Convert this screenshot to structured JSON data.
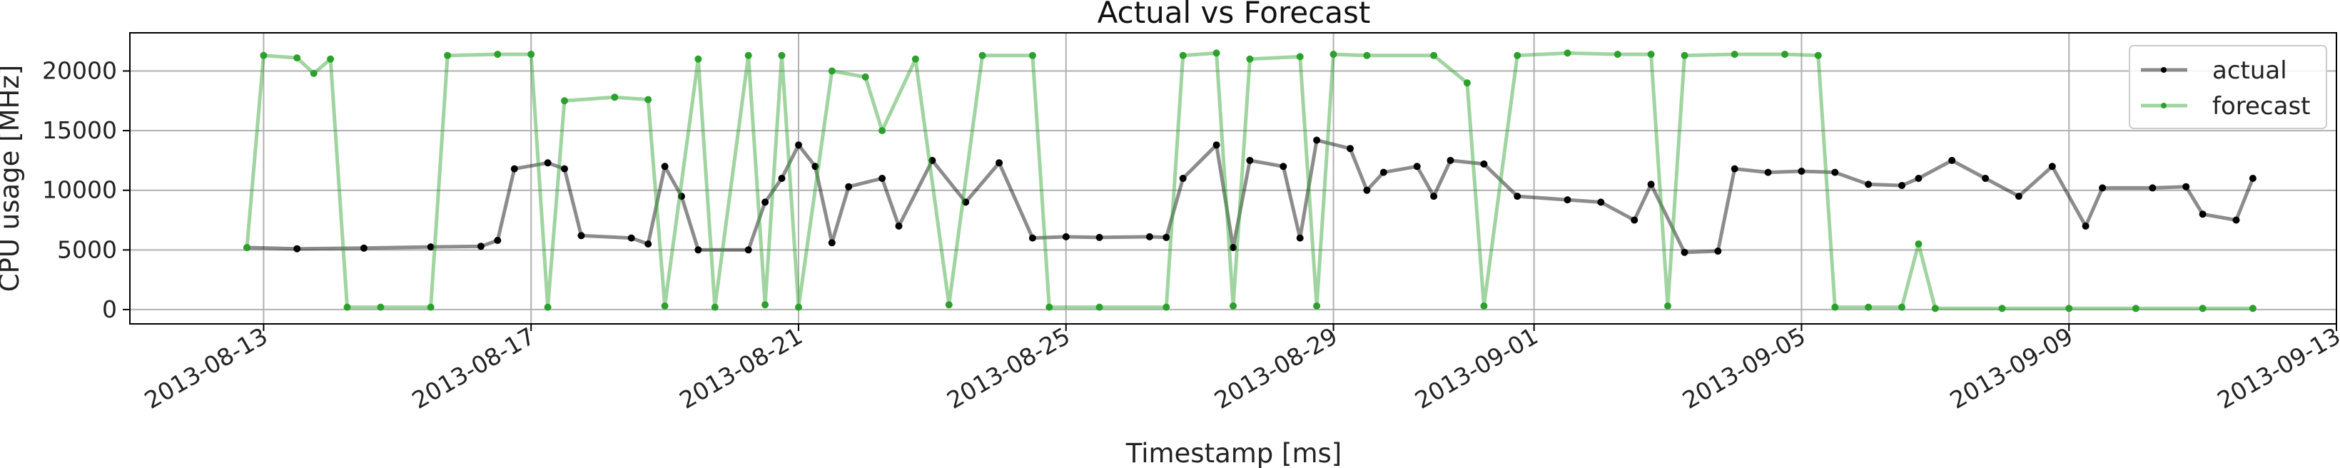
{
  "chart_data": {
    "type": "line",
    "title": "Actual vs Forecast",
    "xlabel": "Timestamp [ms]",
    "ylabel": "CPU usage [MHz]",
    "x_range": [
      "2013-08-11",
      "2013-09-13"
    ],
    "ylim": [
      -1200,
      23200
    ],
    "x_ticks": [
      "2013-08-13",
      "2013-08-17",
      "2013-08-21",
      "2013-08-25",
      "2013-08-29",
      "2013-09-01",
      "2013-09-05",
      "2013-09-09",
      "2013-09-13"
    ],
    "y_ticks": [
      0,
      5000,
      10000,
      15000,
      20000
    ],
    "grid": true,
    "legend_position": "top-right",
    "series": [
      {
        "name": "actual",
        "color": "#000000",
        "points": [
          [
            "2013-08-12T18:00",
            5200
          ],
          [
            "2013-08-13T12:00",
            5100
          ],
          [
            "2013-08-14T12:00",
            5150
          ],
          [
            "2013-08-15T12:00",
            5250
          ],
          [
            "2013-08-16T06:00",
            5300
          ],
          [
            "2013-08-16T12:00",
            5800
          ],
          [
            "2013-08-16T18:00",
            11800
          ],
          [
            "2013-08-17T06:00",
            12300
          ],
          [
            "2013-08-17T12:00",
            11800
          ],
          [
            "2013-08-17T18:00",
            6200
          ],
          [
            "2013-08-18T12:00",
            6000
          ],
          [
            "2013-08-18T18:00",
            5500
          ],
          [
            "2013-08-19T00:00",
            12000
          ],
          [
            "2013-08-19T06:00",
            9500
          ],
          [
            "2013-08-19T12:00",
            5000
          ],
          [
            "2013-08-20T06:00",
            5000
          ],
          [
            "2013-08-20T12:00",
            9000
          ],
          [
            "2013-08-20T18:00",
            11000
          ],
          [
            "2013-08-21T00:00",
            13800
          ],
          [
            "2013-08-21T06:00",
            12000
          ],
          [
            "2013-08-21T12:00",
            5600
          ],
          [
            "2013-08-21T18:00",
            10300
          ],
          [
            "2013-08-22T06:00",
            11000
          ],
          [
            "2013-08-22T12:00",
            7000
          ],
          [
            "2013-08-23T00:00",
            12500
          ],
          [
            "2013-08-23T12:00",
            9000
          ],
          [
            "2013-08-24T00:00",
            12300
          ],
          [
            "2013-08-24T12:00",
            6000
          ],
          [
            "2013-08-25T00:00",
            6100
          ],
          [
            "2013-08-25T12:00",
            6050
          ],
          [
            "2013-08-26T06:00",
            6100
          ],
          [
            "2013-08-26T12:00",
            6050
          ],
          [
            "2013-08-26T18:00",
            11000
          ],
          [
            "2013-08-27T06:00",
            13800
          ],
          [
            "2013-08-27T12:00",
            5200
          ],
          [
            "2013-08-27T18:00",
            12500
          ],
          [
            "2013-08-28T06:00",
            12000
          ],
          [
            "2013-08-28T12:00",
            6000
          ],
          [
            "2013-08-28T18:00",
            14200
          ],
          [
            "2013-08-29T06:00",
            13500
          ],
          [
            "2013-08-29T12:00",
            10000
          ],
          [
            "2013-08-29T18:00",
            11500
          ],
          [
            "2013-08-30T06:00",
            12000
          ],
          [
            "2013-08-30T12:00",
            9500
          ],
          [
            "2013-08-30T18:00",
            12500
          ],
          [
            "2013-08-31T06:00",
            12200
          ],
          [
            "2013-08-31T18:00",
            9500
          ],
          [
            "2013-09-01T12:00",
            9200
          ],
          [
            "2013-09-02T00:00",
            9000
          ],
          [
            "2013-09-02T12:00",
            7500
          ],
          [
            "2013-09-02T18:00",
            10500
          ],
          [
            "2013-09-03T06:00",
            4800
          ],
          [
            "2013-09-03T18:00",
            4900
          ],
          [
            "2013-09-04T00:00",
            11800
          ],
          [
            "2013-09-04T12:00",
            11500
          ],
          [
            "2013-09-05T00:00",
            11600
          ],
          [
            "2013-09-05T12:00",
            11500
          ],
          [
            "2013-09-06T00:00",
            10500
          ],
          [
            "2013-09-06T12:00",
            10400
          ],
          [
            "2013-09-06T18:00",
            11000
          ],
          [
            "2013-09-07T06:00",
            12500
          ],
          [
            "2013-09-07T18:00",
            11000
          ],
          [
            "2013-09-08T06:00",
            9500
          ],
          [
            "2013-09-08T18:00",
            12000
          ],
          [
            "2013-09-09T06:00",
            7000
          ],
          [
            "2013-09-09T12:00",
            10200
          ],
          [
            "2013-09-10T06:00",
            10200
          ],
          [
            "2013-09-10T18:00",
            10300
          ],
          [
            "2013-09-11T00:00",
            8000
          ],
          [
            "2013-09-11T12:00",
            7500
          ],
          [
            "2013-09-11T18:00",
            11000
          ]
        ]
      },
      {
        "name": "forecast",
        "color": "#2ca02c",
        "points": [
          [
            "2013-08-12T18:00",
            5200
          ],
          [
            "2013-08-13T00:00",
            21300
          ],
          [
            "2013-08-13T12:00",
            21100
          ],
          [
            "2013-08-13T18:00",
            19800
          ],
          [
            "2013-08-14T00:00",
            21000
          ],
          [
            "2013-08-14T06:00",
            200
          ],
          [
            "2013-08-14T18:00",
            200
          ],
          [
            "2013-08-15T12:00",
            200
          ],
          [
            "2013-08-15T18:00",
            21300
          ],
          [
            "2013-08-16T12:00",
            21400
          ],
          [
            "2013-08-17T00:00",
            21400
          ],
          [
            "2013-08-17T06:00",
            200
          ],
          [
            "2013-08-17T12:00",
            17500
          ],
          [
            "2013-08-18T06:00",
            17800
          ],
          [
            "2013-08-18T18:00",
            17600
          ],
          [
            "2013-08-19T00:00",
            300
          ],
          [
            "2013-08-19T12:00",
            21000
          ],
          [
            "2013-08-19T18:00",
            200
          ],
          [
            "2013-08-20T06:00",
            21300
          ],
          [
            "2013-08-20T12:00",
            400
          ],
          [
            "2013-08-20T18:00",
            21300
          ],
          [
            "2013-08-21T00:00",
            200
          ],
          [
            "2013-08-21T12:00",
            20000
          ],
          [
            "2013-08-22T00:00",
            19500
          ],
          [
            "2013-08-22T06:00",
            15000
          ],
          [
            "2013-08-22T18:00",
            21000
          ],
          [
            "2013-08-23T06:00",
            400
          ],
          [
            "2013-08-23T18:00",
            21300
          ],
          [
            "2013-08-24T12:00",
            21300
          ],
          [
            "2013-08-24T18:00",
            200
          ],
          [
            "2013-08-25T12:00",
            200
          ],
          [
            "2013-08-26T12:00",
            200
          ],
          [
            "2013-08-26T18:00",
            21300
          ],
          [
            "2013-08-27T06:00",
            21500
          ],
          [
            "2013-08-27T12:00",
            300
          ],
          [
            "2013-08-27T18:00",
            21000
          ],
          [
            "2013-08-28T12:00",
            21200
          ],
          [
            "2013-08-28T18:00",
            300
          ],
          [
            "2013-08-29T00:00",
            21400
          ],
          [
            "2013-08-29T12:00",
            21300
          ],
          [
            "2013-08-30T12:00",
            21300
          ],
          [
            "2013-08-31T00:00",
            19000
          ],
          [
            "2013-08-31T06:00",
            300
          ],
          [
            "2013-08-31T18:00",
            21300
          ],
          [
            "2013-09-01T12:00",
            21500
          ],
          [
            "2013-09-02T06:00",
            21400
          ],
          [
            "2013-09-02T18:00",
            21400
          ],
          [
            "2013-09-03T00:00",
            300
          ],
          [
            "2013-09-03T06:00",
            21300
          ],
          [
            "2013-09-04T00:00",
            21400
          ],
          [
            "2013-09-04T18:00",
            21400
          ],
          [
            "2013-09-05T06:00",
            21300
          ],
          [
            "2013-09-05T12:00",
            200
          ],
          [
            "2013-09-06T00:00",
            200
          ],
          [
            "2013-09-06T12:00",
            200
          ],
          [
            "2013-09-06T18:00",
            5500
          ],
          [
            "2013-09-07T00:00",
            100
          ],
          [
            "2013-09-08T00:00",
            100
          ],
          [
            "2013-09-09T00:00",
            100
          ],
          [
            "2013-09-10T00:00",
            100
          ],
          [
            "2013-09-11T00:00",
            100
          ],
          [
            "2013-09-11T18:00",
            100
          ]
        ]
      }
    ]
  }
}
